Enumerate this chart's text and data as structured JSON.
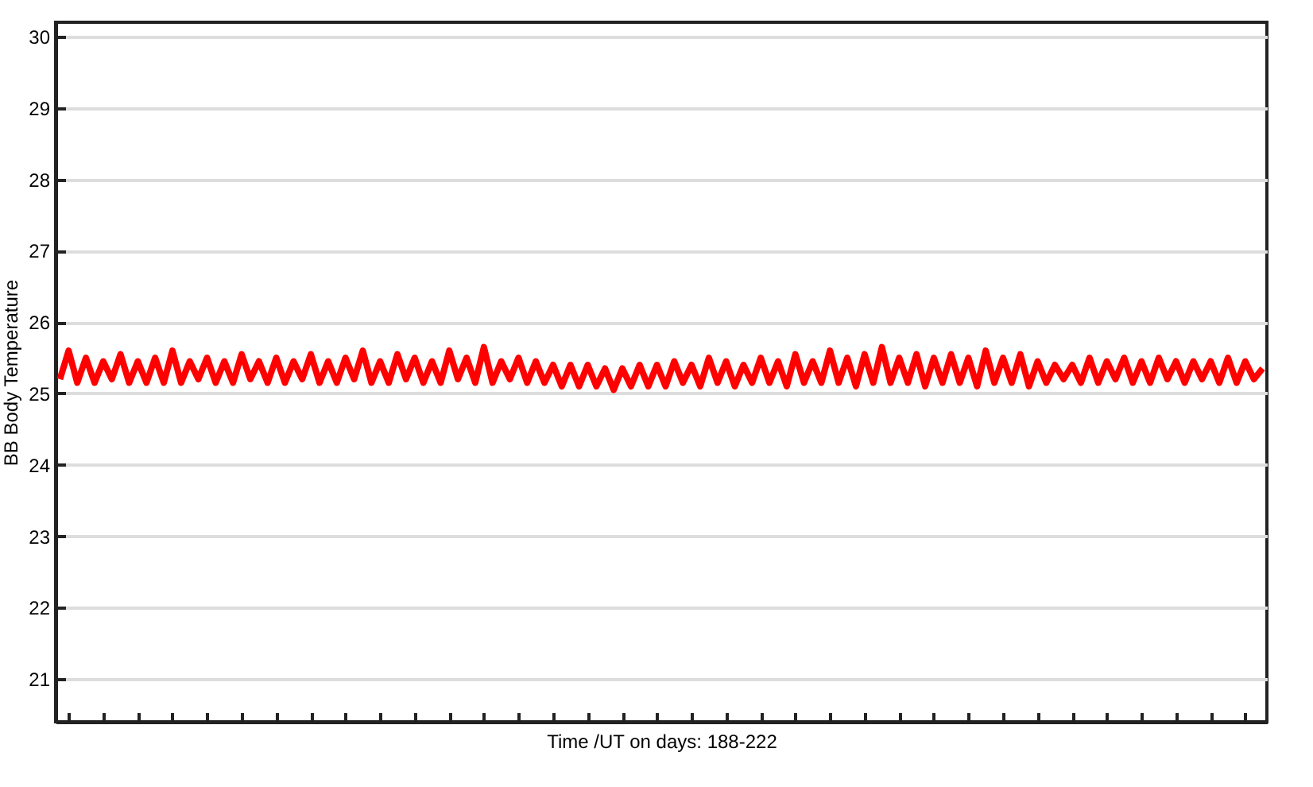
{
  "chart_data": {
    "type": "line",
    "xlabel": "Time /UT on days: 188-222",
    "ylabel": "BB Body Temperature",
    "categories": [
      null,
      null,
      null,
      null,
      null,
      null,
      null,
      null,
      null,
      null,
      null,
      null,
      null,
      null,
      null,
      null,
      null,
      null,
      null,
      null,
      null,
      null,
      null,
      null,
      null,
      null,
      null,
      null,
      null,
      null,
      null,
      null,
      null,
      null,
      null,
      null,
      null,
      null,
      null,
      null,
      null,
      null,
      null,
      null,
      null,
      null,
      null,
      null,
      null,
      null,
      null,
      null,
      null,
      null,
      null,
      null,
      null,
      null,
      null,
      null,
      null,
      null,
      null,
      null,
      null,
      null,
      null,
      null,
      null,
      null,
      null,
      null,
      null,
      null,
      null,
      null,
      null,
      null,
      null,
      null,
      null,
      null,
      null,
      null,
      null,
      null,
      null,
      null,
      null,
      null,
      null,
      null,
      null,
      null,
      null,
      null,
      null,
      null,
      null,
      null,
      null,
      null,
      null,
      null,
      null,
      null,
      null,
      null,
      null,
      null,
      null,
      null,
      null,
      null,
      null,
      null,
      null,
      null,
      null,
      null,
      null,
      null,
      null,
      null,
      null,
      null,
      null,
      null,
      null,
      null,
      null,
      null,
      null,
      null,
      null,
      null,
      null,
      null,
      null,
      null
    ],
    "series": [
      {
        "color": "#ff0000",
        "values": [
          25.2,
          25.6,
          25.15,
          25.5,
          25.15,
          25.45,
          25.2,
          25.55,
          25.15,
          25.45,
          25.15,
          25.5,
          25.15,
          25.6,
          25.15,
          25.45,
          25.2,
          25.5,
          25.15,
          25.45,
          25.15,
          25.55,
          25.2,
          25.45,
          25.15,
          25.5,
          25.15,
          25.45,
          25.2,
          25.55,
          25.15,
          25.45,
          25.15,
          25.5,
          25.2,
          25.6,
          25.15,
          25.45,
          25.15,
          25.55,
          25.2,
          25.5,
          25.15,
          25.45,
          25.15,
          25.6,
          25.2,
          25.5,
          25.15,
          25.65,
          25.15,
          25.45,
          25.2,
          25.5,
          25.15,
          25.45,
          25.15,
          25.4,
          25.1,
          25.4,
          25.1,
          25.4,
          25.1,
          25.35,
          25.05,
          25.35,
          25.1,
          25.4,
          25.1,
          25.4,
          25.1,
          25.45,
          25.15,
          25.4,
          25.1,
          25.5,
          25.15,
          25.45,
          25.1,
          25.4,
          25.15,
          25.5,
          25.15,
          25.45,
          25.1,
          25.55,
          25.15,
          25.45,
          25.15,
          25.6,
          25.15,
          25.5,
          25.1,
          25.55,
          25.15,
          25.65,
          25.15,
          25.5,
          25.15,
          25.55,
          25.1,
          25.5,
          25.15,
          25.55,
          25.15,
          25.5,
          25.1,
          25.6,
          25.15,
          25.5,
          25.15,
          25.55,
          25.1,
          25.45,
          25.15,
          25.4,
          25.2,
          25.4,
          25.15,
          25.5,
          25.15,
          25.45,
          25.2,
          25.5,
          25.15,
          25.45,
          25.15,
          25.5,
          25.2,
          25.45,
          25.15,
          25.45,
          25.2,
          25.45,
          25.15,
          25.5,
          25.15,
          25.45,
          25.2,
          25.35
        ]
      }
    ],
    "ylim": [
      20.4,
      30.2
    ],
    "yticks": [
      21,
      22,
      23,
      24,
      25,
      26,
      27,
      28,
      29,
      30
    ],
    "grid": "y",
    "tick_labels": "y"
  }
}
